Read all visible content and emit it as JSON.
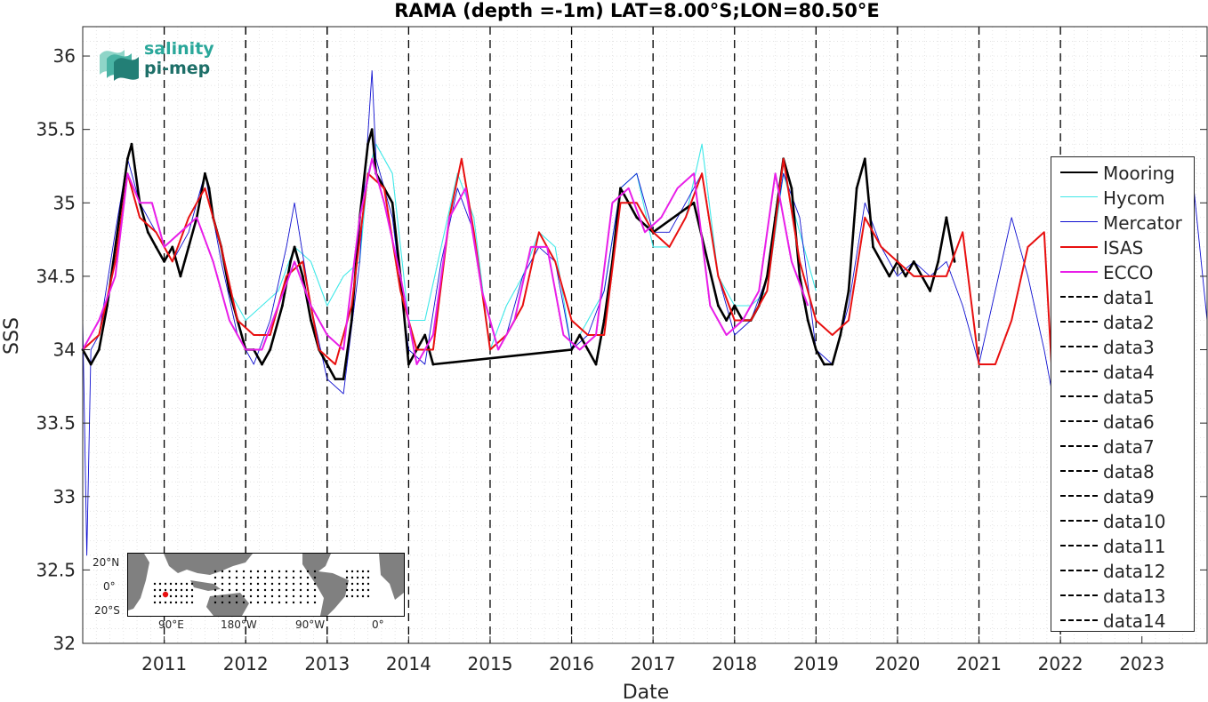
{
  "chart_data": {
    "type": "line",
    "title": "RAMA (depth =-1m) LAT=8.00°S;LON=80.50°E",
    "xlabel": "Date",
    "ylabel": "SSS",
    "x_ticks": [
      "2011",
      "2012",
      "2013",
      "2014",
      "2015",
      "2016",
      "2017",
      "2018",
      "2019",
      "2020",
      "2021",
      "2022",
      "2023"
    ],
    "y_ticks": [
      "32",
      "32.5",
      "33",
      "33.5",
      "34",
      "34.5",
      "35",
      "35.5",
      "36"
    ],
    "xlim": [
      2010.0,
      2023.8
    ],
    "ylim": [
      32,
      36.2
    ],
    "grid": "on (minor dotted)",
    "legend_location": "right",
    "series": [
      {
        "name": "Mooring",
        "color": "#000000",
        "x": [
          2010.0,
          2010.1,
          2010.2,
          2010.3,
          2010.45,
          2010.55,
          2010.6,
          2010.7,
          2010.8,
          2010.9,
          2011.0,
          2011.1,
          2011.2,
          2011.3,
          2011.4,
          2011.5,
          2011.55,
          2011.6,
          2011.7,
          2011.8,
          2011.9,
          2012.0,
          2012.1,
          2012.2,
          2012.3,
          2012.45,
          2012.55,
          2012.6,
          2012.7,
          2012.8,
          2012.9,
          2013.0,
          2013.1,
          2013.2,
          2013.3,
          2013.4,
          2013.5,
          2013.55,
          2013.6,
          2013.7,
          2013.8,
          2013.9,
          2014.0,
          2014.1,
          2014.2,
          2014.3,
          2016.0,
          2016.1,
          2016.2,
          2016.3,
          2016.4,
          2016.5,
          2016.6,
          2016.7,
          2016.8,
          2017.0,
          2017.5,
          2017.8,
          2017.9,
          2018.0,
          2018.1,
          2018.2,
          2018.3,
          2018.4,
          2018.5,
          2018.6,
          2018.7,
          2018.8,
          2018.9,
          2019.0,
          2019.1,
          2019.2,
          2019.3,
          2019.4,
          2019.5,
          2019.6,
          2019.7,
          2019.8,
          2019.9,
          2020.0,
          2020.1,
          2020.2,
          2020.3,
          2020.4,
          2020.5,
          2020.6,
          2020.7
        ],
        "y": [
          34.0,
          33.9,
          34.0,
          34.3,
          34.9,
          35.3,
          35.4,
          35.0,
          34.8,
          34.7,
          34.6,
          34.7,
          34.5,
          34.7,
          34.9,
          35.2,
          35.1,
          34.9,
          34.7,
          34.4,
          34.2,
          34.0,
          34.0,
          33.9,
          34.0,
          34.3,
          34.6,
          34.7,
          34.5,
          34.2,
          34.0,
          33.9,
          33.8,
          33.8,
          34.2,
          34.9,
          35.4,
          35.5,
          35.2,
          35.1,
          35.0,
          34.5,
          33.9,
          34.0,
          34.1,
          33.9,
          34.0,
          34.1,
          34.0,
          33.9,
          34.2,
          34.6,
          35.1,
          35.0,
          34.9,
          34.8,
          35.0,
          34.3,
          34.2,
          34.3,
          34.2,
          34.2,
          34.3,
          34.5,
          34.9,
          35.3,
          35.1,
          34.5,
          34.2,
          34.0,
          33.9,
          33.9,
          34.1,
          34.4,
          35.1,
          35.3,
          34.7,
          34.6,
          34.5,
          34.6,
          34.5,
          34.6,
          34.5,
          34.4,
          34.6,
          34.9,
          34.6
        ]
      },
      {
        "name": "Hycom",
        "color": "#3fe8e8",
        "x": [
          2011.8,
          2012.0,
          2012.2,
          2012.4,
          2012.6,
          2012.8,
          2013.0,
          2013.2,
          2013.4,
          2013.5,
          2013.6,
          2013.8,
          2014.0,
          2014.2,
          2014.4,
          2014.6,
          2014.8,
          2015.0,
          2015.2,
          2015.4,
          2015.6,
          2015.8,
          2016.0,
          2016.2,
          2016.4,
          2016.6,
          2016.8,
          2017.0,
          2017.2,
          2017.4,
          2017.6,
          2017.8,
          2018.0,
          2018.2,
          2018.4,
          2018.6,
          2018.8,
          2019.0
        ],
        "y": [
          34.4,
          34.2,
          34.3,
          34.4,
          34.7,
          34.6,
          34.3,
          34.5,
          34.6,
          35.2,
          35.4,
          35.2,
          34.2,
          34.2,
          34.7,
          35.2,
          34.9,
          34.0,
          34.3,
          34.5,
          34.8,
          34.7,
          34.0,
          34.2,
          34.4,
          35.1,
          35.2,
          34.7,
          34.7,
          34.9,
          35.4,
          34.5,
          34.3,
          34.3,
          34.4,
          35.2,
          34.8,
          34.4
        ]
      },
      {
        "name": "Mercator",
        "color": "#0f0fd0",
        "x": [
          2010.0,
          2010.05,
          2010.1,
          2010.2,
          2010.4,
          2010.55,
          2010.7,
          2010.9,
          2011.1,
          2011.3,
          2011.5,
          2011.7,
          2011.9,
          2012.1,
          2012.3,
          2012.5,
          2012.6,
          2012.8,
          2013.0,
          2013.2,
          2013.4,
          2013.55,
          2013.6,
          2013.8,
          2014.0,
          2014.2,
          2014.4,
          2014.6,
          2014.8,
          2015.0,
          2015.2,
          2015.4,
          2015.6,
          2015.8,
          2016.0,
          2016.2,
          2016.4,
          2016.6,
          2016.8,
          2017.0,
          2017.2,
          2017.4,
          2017.6,
          2017.8,
          2018.0,
          2018.2,
          2018.4,
          2018.6,
          2018.8,
          2019.0,
          2019.2,
          2019.4,
          2019.6,
          2019.8,
          2020.0,
          2020.2,
          2020.4,
          2020.6,
          2020.8,
          2021.0,
          2021.2,
          2021.4,
          2021.6,
          2021.8,
          2021.9,
          2022.0,
          2022.3,
          2022.6,
          2022.8,
          2023.0,
          2023.2,
          2023.4,
          2023.6,
          2023.8
        ],
        "y": [
          34.2,
          32.6,
          34.0,
          34.1,
          34.8,
          35.3,
          35.0,
          34.8,
          34.6,
          34.8,
          35.2,
          34.6,
          34.1,
          33.9,
          34.2,
          34.7,
          35.0,
          34.3,
          33.8,
          33.7,
          34.6,
          35.9,
          35.3,
          34.9,
          34.0,
          33.9,
          34.6,
          35.1,
          34.8,
          34.0,
          34.1,
          34.5,
          34.7,
          34.6,
          34.0,
          34.1,
          34.4,
          35.1,
          35.2,
          34.8,
          34.8,
          35.0,
          35.2,
          34.5,
          34.1,
          34.2,
          34.5,
          35.2,
          34.9,
          34.0,
          33.9,
          34.3,
          35.0,
          34.7,
          34.5,
          34.6,
          34.5,
          34.6,
          34.3,
          33.9,
          34.4,
          34.9,
          34.5,
          34.0,
          33.7,
          34.1,
          34.8,
          35.2,
          34.9,
          34.5,
          34.6,
          34.8,
          35.3,
          34.2
        ]
      },
      {
        "name": "ISAS",
        "color": "#e81010",
        "x": [
          2010.0,
          2010.2,
          2010.4,
          2010.55,
          2010.7,
          2010.9,
          2011.1,
          2011.3,
          2011.5,
          2011.7,
          2011.9,
          2012.1,
          2012.3,
          2012.5,
          2012.7,
          2012.9,
          2013.1,
          2013.3,
          2013.5,
          2013.7,
          2013.9,
          2014.1,
          2014.3,
          2014.5,
          2014.65,
          2014.8,
          2015.0,
          2015.2,
          2015.4,
          2015.6,
          2015.8,
          2016.0,
          2016.2,
          2016.4,
          2016.6,
          2016.8,
          2017.0,
          2017.2,
          2017.4,
          2017.6,
          2017.8,
          2018.0,
          2018.2,
          2018.4,
          2018.6,
          2018.8,
          2019.0,
          2019.2,
          2019.4,
          2019.6,
          2019.8,
          2020.0,
          2020.2,
          2020.4,
          2020.6,
          2020.8,
          2021.0,
          2021.2,
          2021.4,
          2021.6,
          2021.8,
          2021.9
        ],
        "y": [
          34.0,
          34.1,
          34.6,
          35.2,
          34.9,
          34.8,
          34.6,
          34.9,
          35.1,
          34.7,
          34.2,
          34.1,
          34.1,
          34.5,
          34.6,
          34.0,
          33.9,
          34.3,
          35.2,
          35.1,
          34.4,
          34.0,
          34.0,
          34.9,
          35.3,
          34.8,
          34.0,
          34.1,
          34.3,
          34.8,
          34.6,
          34.2,
          34.1,
          34.1,
          35.0,
          35.0,
          34.8,
          34.7,
          34.9,
          35.2,
          34.5,
          34.2,
          34.2,
          34.4,
          35.3,
          34.6,
          34.2,
          34.1,
          34.2,
          34.9,
          34.7,
          34.6,
          34.5,
          34.5,
          34.5,
          34.8,
          33.9,
          33.9,
          34.2,
          34.7,
          34.8,
          33.8
        ]
      },
      {
        "name": "ECCO",
        "color": "#e81ee8",
        "x": [
          2010.0,
          2010.2,
          2010.4,
          2010.55,
          2010.7,
          2010.85,
          2011.0,
          2011.2,
          2011.4,
          2011.6,
          2011.8,
          2012.0,
          2012.2,
          2012.4,
          2012.6,
          2012.8,
          2013.0,
          2013.2,
          2013.4,
          2013.55,
          2013.7,
          2013.9,
          2014.1,
          2014.3,
          2014.5,
          2014.7,
          2014.9,
          2015.1,
          2015.3,
          2015.5,
          2015.7,
          2015.9,
          2016.1,
          2016.3,
          2016.5,
          2016.7,
          2016.9,
          2017.1,
          2017.3,
          2017.5,
          2017.7,
          2017.9,
          2018.1,
          2018.3,
          2018.5,
          2018.7,
          2018.9
        ],
        "y": [
          34.0,
          34.2,
          34.5,
          35.2,
          35.0,
          35.0,
          34.7,
          34.8,
          34.9,
          34.6,
          34.2,
          34.0,
          34.0,
          34.3,
          34.6,
          34.3,
          34.1,
          34.0,
          34.9,
          35.3,
          35.0,
          34.5,
          33.9,
          34.1,
          34.9,
          35.1,
          34.4,
          34.0,
          34.2,
          34.7,
          34.7,
          34.1,
          34.0,
          34.1,
          35.0,
          35.1,
          34.8,
          34.9,
          35.1,
          35.2,
          34.3,
          34.1,
          34.2,
          34.4,
          35.2,
          34.6,
          34.3
        ]
      }
    ],
    "vlines": [
      {
        "name": "data1",
        "x": 2011.0,
        "color": "#000000"
      },
      {
        "name": "data2",
        "x": 2012.0,
        "color": "#000000"
      },
      {
        "name": "data3",
        "x": 2013.0,
        "color": "#000000"
      },
      {
        "name": "data4",
        "x": 2014.0,
        "color": "#000000"
      },
      {
        "name": "data5",
        "x": 2015.0,
        "color": "#000000"
      },
      {
        "name": "data6",
        "x": 2016.0,
        "color": "#000000"
      },
      {
        "name": "data7",
        "x": 2017.0,
        "color": "#000000"
      },
      {
        "name": "data8",
        "x": 2018.0,
        "color": "#000000"
      },
      {
        "name": "data9",
        "x": 2019.0,
        "color": "#000000"
      },
      {
        "name": "data10",
        "x": 2020.0,
        "color": "#000000"
      },
      {
        "name": "data11",
        "x": 2021.0,
        "color": "#000000"
      },
      {
        "name": "data12",
        "x": 2022.0,
        "color": "#000000"
      },
      {
        "name": "data13",
        "x": 2012.0,
        "color": "#000000"
      },
      {
        "name": "data14",
        "x": 2013.0,
        "color": "#000000"
      }
    ]
  },
  "logo": {
    "line1": "salinity",
    "line2": "pi-mep"
  },
  "inset_map": {
    "lat_labels": [
      "20°N",
      "0°",
      "20°S"
    ],
    "lon_labels": [
      "90°E",
      "180°W",
      "90°W",
      "0°"
    ],
    "marker_color": "#e81010",
    "land_color": "#808080"
  }
}
